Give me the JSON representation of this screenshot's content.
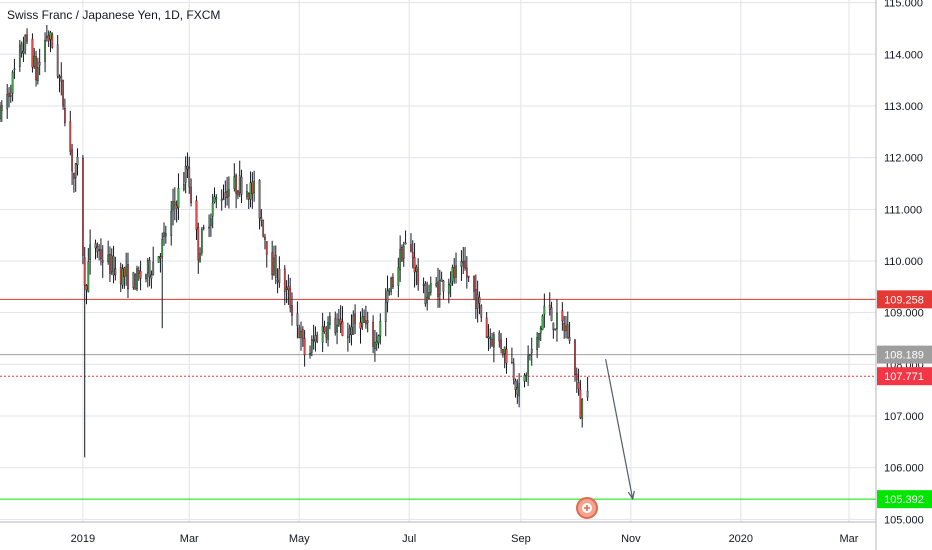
{
  "chart_data": {
    "type": "candlestick",
    "title": "Swiss Franc / Japanese Yen, 1D, FXCM",
    "ylim": [
      104.95,
      115.05
    ],
    "y_ticks": [
      105.0,
      106.0,
      107.0,
      108.0,
      109.0,
      110.0,
      111.0,
      112.0,
      113.0,
      114.0,
      115.0
    ],
    "y_tick_labels": [
      "105.000",
      "106.000",
      "107.000",
      "108.000",
      "109.000",
      "110.000",
      "111.000",
      "112.000",
      "113.000",
      "114.000",
      "115.000"
    ],
    "x_ticks": [
      {
        "label": "2019",
        "day": 0
      },
      {
        "label": "Mar",
        "day": 59
      },
      {
        "label": "May",
        "day": 120
      },
      {
        "label": "Jul",
        "day": 181
      },
      {
        "label": "Sep",
        "day": 243
      },
      {
        "label": "Nov",
        "day": 304
      },
      {
        "label": "2020",
        "day": 365
      },
      {
        "label": "Mar",
        "day": 425
      }
    ],
    "x_range_days": [
      -46,
      440
    ],
    "anchors": [
      {
        "day": -46,
        "price": 112.8
      },
      {
        "day": -40,
        "price": 113.4
      },
      {
        "day": -34,
        "price": 114.1
      },
      {
        "day": -30,
        "price": 114.3
      },
      {
        "day": -26,
        "price": 113.6
      },
      {
        "day": -20,
        "price": 114.4
      },
      {
        "day": -16,
        "price": 114.1
      },
      {
        "day": -10,
        "price": 112.9
      },
      {
        "day": -5,
        "price": 111.6
      },
      {
        "day": -2,
        "price": 111.9
      },
      {
        "day": 1,
        "price": 109.4
      },
      {
        "day": 5,
        "price": 110.4
      },
      {
        "day": 12,
        "price": 110.0
      },
      {
        "day": 20,
        "price": 109.8
      },
      {
        "day": 28,
        "price": 109.6
      },
      {
        "day": 36,
        "price": 109.8
      },
      {
        "day": 44,
        "price": 110.3
      },
      {
        "day": 52,
        "price": 111.2
      },
      {
        "day": 58,
        "price": 111.8
      },
      {
        "day": 64,
        "price": 110.2
      },
      {
        "day": 72,
        "price": 111.1
      },
      {
        "day": 80,
        "price": 111.4
      },
      {
        "day": 88,
        "price": 111.5
      },
      {
        "day": 96,
        "price": 111.3
      },
      {
        "day": 104,
        "price": 110.0
      },
      {
        "day": 112,
        "price": 109.5
      },
      {
        "day": 118,
        "price": 108.9
      },
      {
        "day": 124,
        "price": 108.1
      },
      {
        "day": 130,
        "price": 108.6
      },
      {
        "day": 138,
        "price": 108.8
      },
      {
        "day": 146,
        "price": 108.6
      },
      {
        "day": 154,
        "price": 108.9
      },
      {
        "day": 162,
        "price": 108.4
      },
      {
        "day": 170,
        "price": 109.4
      },
      {
        "day": 178,
        "price": 110.3
      },
      {
        "day": 183,
        "price": 110.1
      },
      {
        "day": 188,
        "price": 109.3
      },
      {
        "day": 196,
        "price": 109.5
      },
      {
        "day": 204,
        "price": 109.7
      },
      {
        "day": 212,
        "price": 109.8
      },
      {
        "day": 218,
        "price": 109.3
      },
      {
        "day": 224,
        "price": 108.6
      },
      {
        "day": 232,
        "price": 108.4
      },
      {
        "day": 238,
        "price": 108.0
      },
      {
        "day": 243,
        "price": 107.3
      },
      {
        "day": 247,
        "price": 108.1
      },
      {
        "day": 252,
        "price": 108.4
      },
      {
        "day": 256,
        "price": 109.1
      },
      {
        "day": 262,
        "price": 108.8
      },
      {
        "day": 268,
        "price": 108.7
      },
      {
        "day": 272,
        "price": 108.2
      },
      {
        "day": 276,
        "price": 107.1
      },
      {
        "day": 280,
        "price": 107.7
      }
    ],
    "horizontal_lines": [
      {
        "price": 109.258,
        "label": "109.258",
        "color": "#e53935",
        "style": "solid",
        "label_bg": "#e53935"
      },
      {
        "price": 108.189,
        "label": "108.189",
        "color": "#9e9e9e",
        "style": "solid",
        "label_bg": "#9e9e9e"
      },
      {
        "price": 107.771,
        "label": "107.771",
        "color": "#e53935",
        "style": "dotted",
        "label_bg": "#f23645"
      },
      {
        "price": 105.392,
        "label": "105.392",
        "color": "#00e600",
        "style": "solid",
        "label_bg": "#00e600"
      }
    ],
    "projection_arrow": {
      "from": {
        "day": 290,
        "price": 108.1
      },
      "to": {
        "day": 305,
        "price": 105.4
      }
    },
    "colors": {
      "up": "#26a69a",
      "up_body": "#4caf50",
      "down": "#ef5350",
      "wick": "#131722",
      "grid": "#e1e3eb"
    }
  }
}
